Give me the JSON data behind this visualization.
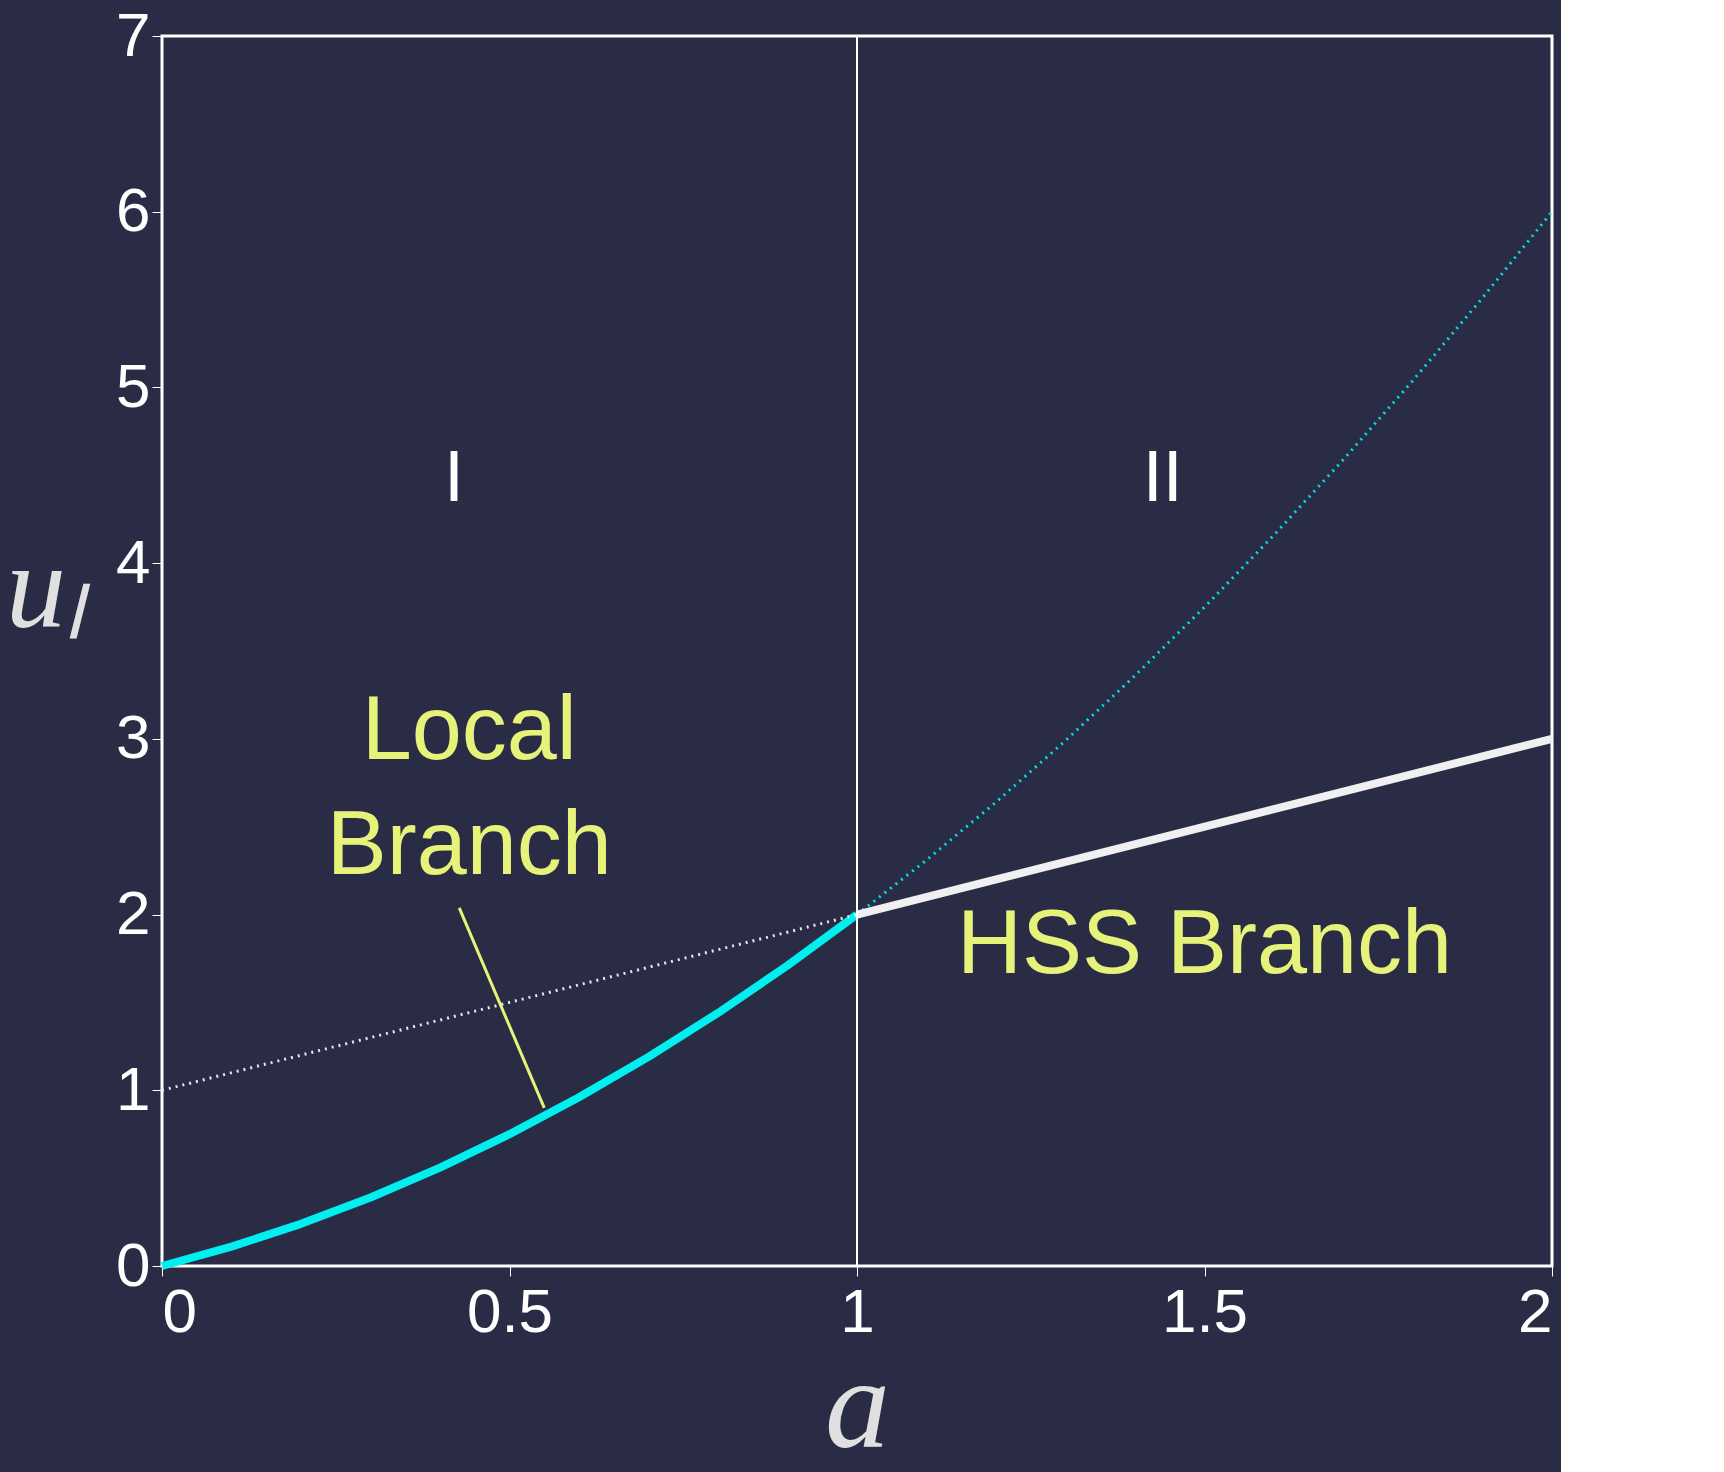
{
  "chart_data": {
    "type": "line",
    "xlabel": "a",
    "ylabel": "uₗ",
    "xlim": [
      0,
      2
    ],
    "ylim": [
      0,
      7
    ],
    "xticks": [
      0,
      0.5,
      1,
      1.5,
      2
    ],
    "yticks": [
      0,
      1,
      2,
      3,
      4,
      5,
      6,
      7
    ],
    "grid": false,
    "marker": "none",
    "series": [
      {
        "color": "#00f0f0",
        "line_style": "solid",
        "x": [
          0,
          0.1,
          0.2,
          0.3,
          0.4,
          0.5,
          0.6,
          0.7,
          0.8,
          0.9,
          1
        ],
        "values": [
          0,
          0.11,
          0.24,
          0.39,
          0.56,
          0.75,
          0.96,
          1.19,
          1.44,
          1.71,
          2
        ]
      },
      {
        "color": "#00e0e8",
        "line_style": "dotted",
        "x": [
          1,
          1.1,
          1.2,
          1.3,
          1.4,
          1.5,
          1.6,
          1.7,
          1.8,
          1.9,
          2
        ],
        "values": [
          2,
          2.31,
          2.64,
          2.99,
          3.36,
          3.75,
          4.16,
          4.59,
          5.04,
          5.51,
          6
        ]
      },
      {
        "color": "#e8e8e8",
        "line_style": "dotted",
        "x": [
          0,
          1
        ],
        "values": [
          1,
          2
        ]
      },
      {
        "color": "#f0f0f0",
        "line_style": "solid",
        "x": [
          1,
          2
        ],
        "values": [
          2,
          3
        ]
      }
    ],
    "ref_lines": [
      {
        "axis": "x",
        "value": 1,
        "color": "#ffffff"
      }
    ],
    "annotations": [
      "I",
      "II",
      {
        "text": "Local Branch",
        "x": 0.55,
        "y": 0.9
      },
      "HSS Branch"
    ]
  }
}
